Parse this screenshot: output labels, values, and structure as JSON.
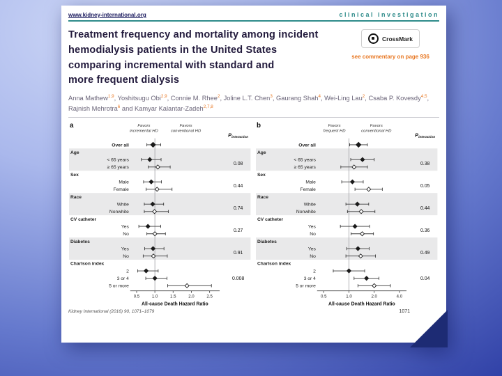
{
  "slide": {
    "background_outer": "#2a3aa2",
    "background_inner": "#ccd6f6",
    "fold_color": "#1d2b74"
  },
  "page": {
    "header": {
      "link": "www.kidney-international.org",
      "section": "clinical investigation",
      "accent_color": "#2e8b8a"
    },
    "title": "Treatment frequency and mortality among incident\nhemodialysis patients in the United States\ncomparing incremental with standard and\nmore frequent dialysis",
    "crossmark_label": "CrossMark",
    "commentary": "see commentary on page 936",
    "commentary_color": "#e87722",
    "authors": [
      {
        "t": "Anna Mathew",
        "s": "1,9"
      },
      {
        "t": ", Yoshitsugu Obi",
        "s": "2,9"
      },
      {
        "t": ", Connie M. Rhee",
        "s": "2"
      },
      {
        "t": ", Joline L.T. Chen",
        "s": "3"
      },
      {
        "t": ", Gaurang Shah",
        "s": "4"
      },
      {
        "t": ", Wei-Ling Lau",
        "s": "2"
      },
      {
        "t": ", Csaba P. Kovesdy",
        "s": "4,5"
      },
      {
        "t": ", Rajnish Mehrotra",
        "s": "6"
      },
      {
        "t": " and Kamyar Kalantar-Zadeh",
        "s": "2,7,8"
      }
    ],
    "footer_left": "Kidney International (2016) 90, 1071–1079",
    "page_number": "1071"
  },
  "chart_data": [
    {
      "type": "forest",
      "panel": "a",
      "favors_left": [
        "Favors",
        "incremental HD"
      ],
      "favors_right": [
        "Favors",
        "conventional HD"
      ],
      "p_header": {
        "main": "P",
        "sub": "interaction"
      },
      "xlabel": "All-cause Death Hazard Ratio",
      "axis": {
        "min": 0.4,
        "max": 2.7,
        "ticks": [
          0.5,
          1.0,
          1.5,
          2.0,
          2.5
        ],
        "log": false,
        "ref": 1.0
      },
      "rows": [
        {
          "type": "overall",
          "label": "Over all",
          "filled": true,
          "hr": 0.95,
          "lo": 0.78,
          "hi": 1.16
        },
        {
          "type": "group",
          "label": "Age",
          "shaded": true,
          "p": "0.08"
        },
        {
          "type": "sub",
          "label": "< 65 years",
          "filled": true,
          "hr": 0.86,
          "lo": 0.63,
          "hi": 1.17
        },
        {
          "type": "sub",
          "label": "≥ 65 years",
          "filled": false,
          "hr": 1.08,
          "lo": 0.82,
          "hi": 1.42
        },
        {
          "type": "group",
          "label": "Sex",
          "shaded": false,
          "p": "0.44"
        },
        {
          "type": "sub",
          "label": "Male",
          "filled": true,
          "hr": 0.9,
          "lo": 0.69,
          "hi": 1.18
        },
        {
          "type": "sub",
          "label": "Female",
          "filled": false,
          "hr": 1.06,
          "lo": 0.76,
          "hi": 1.47
        },
        {
          "type": "group",
          "label": "Race",
          "shaded": true,
          "p": "0.74"
        },
        {
          "type": "sub",
          "label": "White",
          "filled": true,
          "hr": 0.94,
          "lo": 0.71,
          "hi": 1.24
        },
        {
          "type": "sub",
          "label": "Nonwhite",
          "filled": false,
          "hr": 0.99,
          "lo": 0.71,
          "hi": 1.37
        },
        {
          "type": "group",
          "label": "CV catheter",
          "shaded": false,
          "p": "0.27"
        },
        {
          "type": "sub",
          "label": "Yes",
          "filled": true,
          "hr": 0.81,
          "lo": 0.56,
          "hi": 1.16
        },
        {
          "type": "sub",
          "label": "No",
          "filled": false,
          "hr": 1.0,
          "lo": 0.78,
          "hi": 1.29
        },
        {
          "type": "group",
          "label": "Diabetes",
          "shaded": true,
          "p": "0.91"
        },
        {
          "type": "sub",
          "label": "Yes",
          "filled": true,
          "hr": 0.95,
          "lo": 0.72,
          "hi": 1.25
        },
        {
          "type": "sub",
          "label": "No",
          "filled": false,
          "hr": 0.96,
          "lo": 0.68,
          "hi": 1.34
        },
        {
          "type": "group",
          "label": "Charlson index",
          "shaded": false,
          "p": "0.008"
        },
        {
          "type": "sub",
          "label": "2",
          "filled": true,
          "hr": 0.76,
          "lo": 0.53,
          "hi": 1.09
        },
        {
          "type": "sub",
          "label": "3 or 4",
          "filled": true,
          "hr": 1.0,
          "lo": 0.75,
          "hi": 1.33
        },
        {
          "type": "sub",
          "label": "5 or more",
          "filled": false,
          "hr": 1.88,
          "lo": 1.35,
          "hi": 2.55
        }
      ]
    },
    {
      "type": "forest",
      "panel": "b",
      "favors_left": [
        "Favors",
        "frequent HD"
      ],
      "favors_right": [
        "Favors",
        "conventional HD"
      ],
      "p_header": {
        "main": "P",
        "sub": "interaction"
      },
      "xlabel": "All-cause Death Hazard Ratio",
      "axis": {
        "min": 0.45,
        "max": 4.5,
        "ticks": [
          0.5,
          1.0,
          2.0,
          4.0
        ],
        "log": true,
        "ref": 1.0
      },
      "rows": [
        {
          "type": "overall",
          "label": "Over all",
          "filled": true,
          "hr": 1.3,
          "lo": 1.02,
          "hi": 1.66
        },
        {
          "type": "group",
          "label": "Age",
          "shaded": true,
          "p": "0.38"
        },
        {
          "type": "sub",
          "label": "< 65 years",
          "filled": true,
          "hr": 1.45,
          "lo": 1.05,
          "hi": 2.0
        },
        {
          "type": "sub",
          "label": "≥ 65 years",
          "filled": false,
          "hr": 1.15,
          "lo": 0.8,
          "hi": 1.66
        },
        {
          "type": "group",
          "label": "Sex",
          "shaded": false,
          "p": "0.05"
        },
        {
          "type": "sub",
          "label": "Male",
          "filled": true,
          "hr": 1.1,
          "lo": 0.82,
          "hi": 1.48
        },
        {
          "type": "sub",
          "label": "Female",
          "filled": false,
          "hr": 1.72,
          "lo": 1.18,
          "hi": 2.5
        },
        {
          "type": "group",
          "label": "Race",
          "shaded": true,
          "p": "0.44"
        },
        {
          "type": "sub",
          "label": "White",
          "filled": true,
          "hr": 1.26,
          "lo": 0.92,
          "hi": 1.72
        },
        {
          "type": "sub",
          "label": "Nonwhite",
          "filled": false,
          "hr": 1.4,
          "lo": 0.96,
          "hi": 2.04
        },
        {
          "type": "group",
          "label": "CV catheter",
          "shaded": false,
          "p": "0.36"
        },
        {
          "type": "sub",
          "label": "Yes",
          "filled": true,
          "hr": 1.18,
          "lo": 0.79,
          "hi": 1.76
        },
        {
          "type": "sub",
          "label": "No",
          "filled": false,
          "hr": 1.44,
          "lo": 1.06,
          "hi": 1.96
        },
        {
          "type": "group",
          "label": "Diabetes",
          "shaded": true,
          "p": "0.49"
        },
        {
          "type": "sub",
          "label": "Yes",
          "filled": true,
          "hr": 1.28,
          "lo": 0.94,
          "hi": 1.74
        },
        {
          "type": "sub",
          "label": "No",
          "filled": false,
          "hr": 1.38,
          "lo": 0.92,
          "hi": 2.07
        },
        {
          "type": "group",
          "label": "Charlson index",
          "shaded": false,
          "p": "0.04"
        },
        {
          "type": "sub",
          "label": "2",
          "filled": true,
          "hr": 1.0,
          "lo": 0.65,
          "hi": 1.54
        },
        {
          "type": "sub",
          "label": "3 or 4",
          "filled": true,
          "hr": 1.62,
          "lo": 1.15,
          "hi": 2.28
        },
        {
          "type": "sub",
          "label": "5 or more",
          "filled": false,
          "hr": 2.0,
          "lo": 1.28,
          "hi": 3.12
        }
      ]
    }
  ]
}
